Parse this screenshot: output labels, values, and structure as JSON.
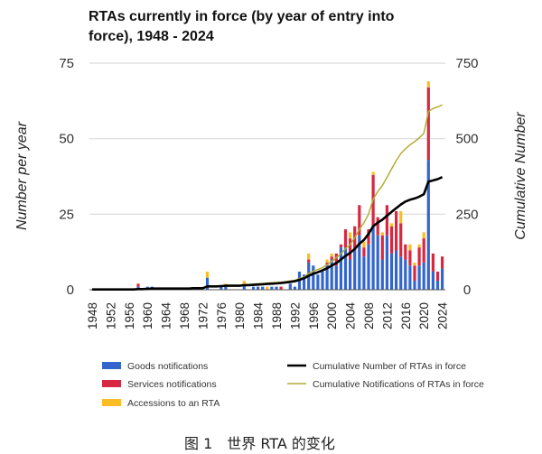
{
  "chart_data": {
    "type": "bar",
    "title_line1": "RTAs currently in force (by year of entry into",
    "title_line2": "force), 1948 - 2024",
    "ylabel_left": "Number per year",
    "ylabel_right": "Cumulative Number",
    "ylim_left": [
      0,
      75
    ],
    "ylim_right": [
      0,
      750
    ],
    "yticks_left": [
      "0",
      "25",
      "50",
      "75"
    ],
    "yticks_right": [
      "0",
      "250",
      "500",
      "750"
    ],
    "year_range": [
      1948,
      2024
    ],
    "xtick_labels": [
      "1948",
      "1952",
      "1956",
      "1960",
      "1964",
      "1968",
      "1972",
      "1976",
      "1980",
      "1984",
      "1988",
      "1992",
      "1996",
      "2000",
      "2004",
      "2008",
      "2012",
      "2016",
      "2020",
      "2024"
    ],
    "grid": true,
    "stacked": true,
    "legend_position": "bottom",
    "series": [
      {
        "name": "Goods notifications",
        "kind": "bar",
        "axis": "left",
        "color": "#3366cc",
        "values": [
          0,
          0,
          0,
          0,
          0,
          0,
          0,
          0,
          0,
          0,
          1,
          0,
          1,
          1,
          0,
          0,
          0,
          0,
          0,
          0,
          0,
          0,
          0,
          0,
          0,
          4,
          0,
          0,
          1,
          1,
          0,
          0,
          0,
          2,
          0,
          1,
          1,
          1,
          0,
          1,
          1,
          0,
          0,
          2,
          1,
          6,
          5,
          9,
          8,
          5,
          6,
          8,
          10,
          8,
          14,
          14,
          10,
          13,
          18,
          11,
          15,
          21,
          18,
          10,
          18,
          12,
          13,
          11,
          10,
          8,
          3,
          8,
          9,
          43,
          6,
          3,
          7
        ]
      },
      {
        "name": "Services notifications",
        "kind": "bar",
        "axis": "left",
        "color": "#d62841",
        "values": [
          0,
          0,
          0,
          0,
          0,
          0,
          0,
          0,
          0,
          0,
          1,
          0,
          0,
          0,
          0,
          0,
          0,
          0,
          0,
          0,
          0,
          0,
          0,
          0,
          0,
          0,
          0,
          0,
          0,
          0,
          0,
          0,
          0,
          0,
          0,
          0,
          0,
          0,
          0,
          0,
          0,
          1,
          0,
          0,
          0,
          0,
          0,
          1,
          0,
          0,
          0,
          1,
          1,
          4,
          1,
          6,
          7,
          8,
          10,
          3,
          5,
          17,
          6,
          8,
          10,
          9,
          13,
          11,
          5,
          5,
          5,
          6,
          8,
          24,
          6,
          3,
          4
        ]
      },
      {
        "name": "Accessions to an RTA",
        "kind": "bar",
        "axis": "left",
        "color": "#fbbc24",
        "values": [
          0,
          0,
          0,
          0,
          0,
          0,
          0,
          0,
          0,
          0,
          0,
          0,
          0,
          0,
          0,
          0,
          0,
          0,
          0,
          0,
          0,
          0,
          0,
          0,
          0,
          2,
          0,
          0,
          0,
          1,
          0,
          0,
          0,
          1,
          0,
          0,
          0,
          0,
          1,
          0,
          0,
          0,
          0,
          0,
          0,
          0,
          0,
          2,
          0,
          0,
          0,
          1,
          1,
          0,
          0,
          0,
          2,
          0,
          0,
          2,
          0,
          1,
          0,
          1,
          0,
          1,
          0,
          4,
          0,
          2,
          1,
          1,
          2,
          2,
          0,
          0,
          0
        ]
      },
      {
        "name": "Cumulative Number of RTAs in force",
        "kind": "line",
        "axis": "right",
        "color": "#000000",
        "values": [
          1,
          1,
          1,
          1,
          1,
          1,
          1,
          1,
          1,
          1,
          2,
          2,
          3,
          4,
          4,
          4,
          4,
          4,
          4,
          4,
          4,
          4,
          5,
          5,
          5,
          11,
          11,
          11,
          12,
          13,
          13,
          13,
          13,
          15,
          15,
          16,
          17,
          18,
          19,
          20,
          21,
          22,
          24,
          26,
          28,
          33,
          38,
          46,
          53,
          58,
          64,
          71,
          80,
          88,
          100,
          112,
          122,
          135,
          152,
          165,
          185,
          210,
          222,
          232,
          245,
          258,
          270,
          282,
          292,
          298,
          302,
          308,
          316,
          358,
          362,
          366,
          373
        ]
      },
      {
        "name": "Cumulative Notifications of RTAs in force",
        "kind": "line",
        "axis": "right",
        "color": "#b3ad35",
        "values": [
          1,
          1,
          1,
          1,
          1,
          1,
          1,
          1,
          1,
          1,
          3,
          3,
          4,
          5,
          5,
          5,
          5,
          5,
          5,
          5,
          5,
          5,
          6,
          6,
          6,
          12,
          12,
          12,
          13,
          15,
          15,
          15,
          15,
          18,
          18,
          19,
          20,
          21,
          22,
          23,
          24,
          25,
          27,
          29,
          31,
          37,
          42,
          54,
          62,
          67,
          73,
          83,
          94,
          106,
          119,
          136,
          150,
          172,
          200,
          222,
          250,
          300,
          325,
          345,
          372,
          400,
          427,
          451,
          466,
          480,
          490,
          503,
          518,
          590,
          600,
          605,
          612
        ]
      }
    ]
  },
  "caption": "图 1　世界 RTA 的变化"
}
